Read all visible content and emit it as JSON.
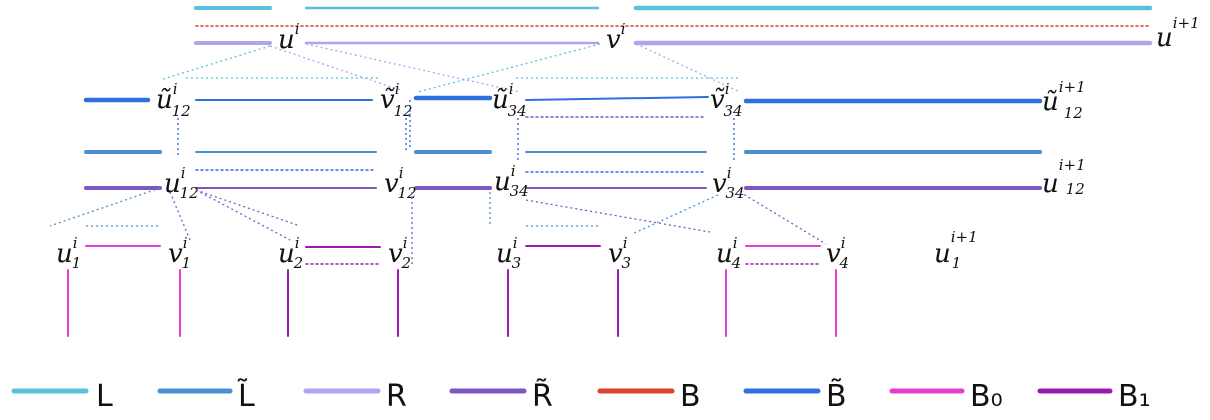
{
  "colors": {
    "L": "#5bc0de",
    "L_tilde": "#4a90d0",
    "R": "#b0a4f0",
    "R_tilde": "#7e57c2",
    "B": "#d9422b",
    "B_tilde": "#2f6fe0",
    "B0": "#e23fd0",
    "B1": "#9a1ab0"
  },
  "top_row": {
    "u": {
      "main": "u",
      "sup": "i",
      "sub": ""
    },
    "v": {
      "main": "v",
      "sup": "i",
      "sub": ""
    },
    "u_next": {
      "main": "u",
      "sup": "i+1",
      "sub": ""
    }
  },
  "tilde_row": {
    "u12": {
      "main": "ũ",
      "sup": "i",
      "sub": "12"
    },
    "v12": {
      "main": "ṽ",
      "sup": "i",
      "sub": "12"
    },
    "u34": {
      "main": "ũ",
      "sup": "i",
      "sub": "34"
    },
    "v34": {
      "main": "ṽ",
      "sup": "i",
      "sub": "34"
    },
    "u12_next": {
      "main": "ũ",
      "sup": "i+1",
      "sub": "12"
    }
  },
  "mid_row": {
    "u12": {
      "main": "u",
      "sup": "i",
      "sub": "12"
    },
    "v12": {
      "main": "v",
      "sup": "i",
      "sub": "12"
    },
    "u34": {
      "main": "u",
      "sup": "i",
      "sub": "34"
    },
    "v34": {
      "main": "v",
      "sup": "i",
      "sub": "34"
    },
    "u12_next": {
      "main": "u",
      "sup": "i+1",
      "sub": "12"
    }
  },
  "bottom_row": {
    "u1": {
      "main": "u",
      "sup": "i",
      "sub": "1"
    },
    "v1": {
      "main": "v",
      "sup": "i",
      "sub": "1"
    },
    "u2": {
      "main": "u",
      "sup": "i",
      "sub": "2"
    },
    "v2": {
      "main": "v",
      "sup": "i",
      "sub": "2"
    },
    "u3": {
      "main": "u",
      "sup": "i",
      "sub": "3"
    },
    "v3": {
      "main": "v",
      "sup": "i",
      "sub": "3"
    },
    "u4": {
      "main": "u",
      "sup": "i",
      "sub": "4"
    },
    "v4": {
      "main": "v",
      "sup": "i",
      "sub": "4"
    },
    "u1_next": {
      "main": "u",
      "sup": "i+1",
      "sub": "1"
    }
  },
  "legend": [
    {
      "key": "L",
      "label": "L"
    },
    {
      "key": "L_tilde",
      "label": "L̃"
    },
    {
      "key": "R",
      "label": "R"
    },
    {
      "key": "R_tilde",
      "label": "R̃"
    },
    {
      "key": "B",
      "label": "B"
    },
    {
      "key": "B_tilde",
      "label": "B̃"
    },
    {
      "key": "B0",
      "label": "B₀"
    },
    {
      "key": "B1",
      "label": "B₁"
    }
  ]
}
